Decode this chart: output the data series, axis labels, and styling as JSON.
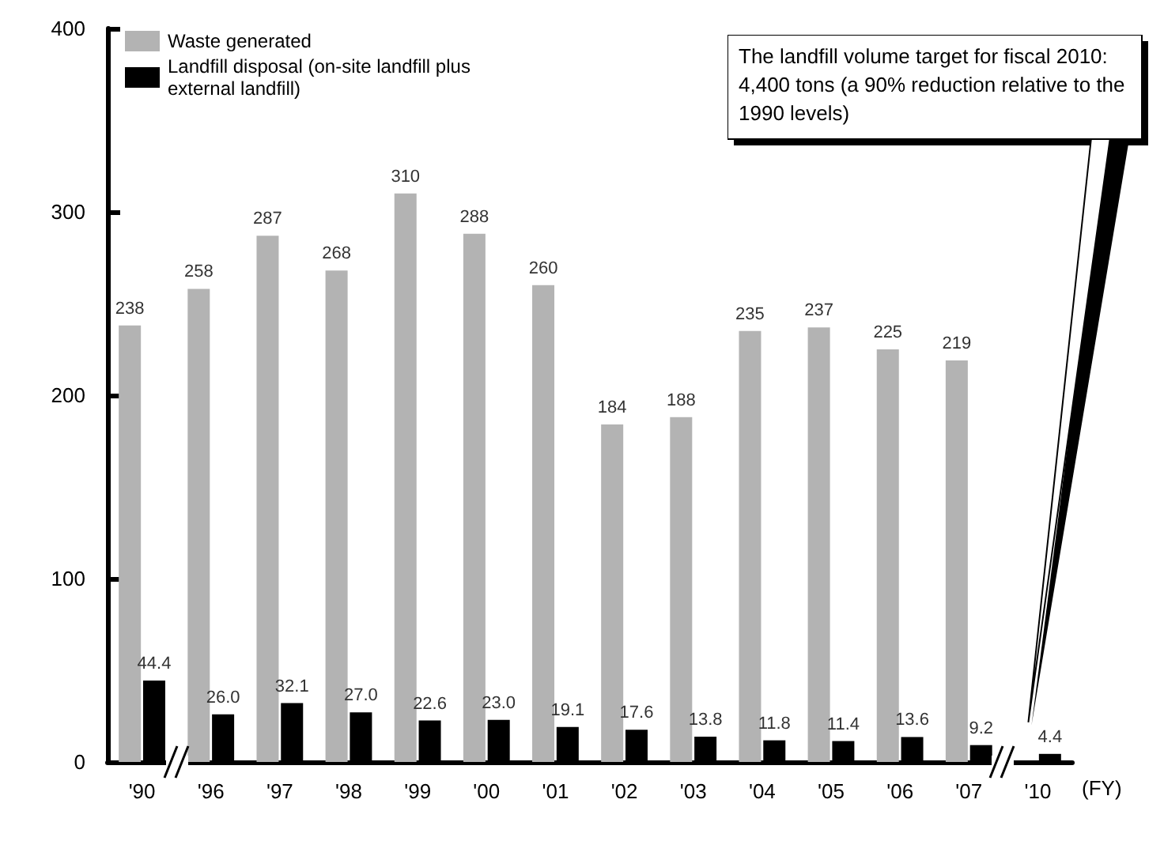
{
  "chart_data": {
    "type": "bar",
    "categories": [
      "'90",
      "'96",
      "'97",
      "'98",
      "'99",
      "'00",
      "'01",
      "'02",
      "'03",
      "'04",
      "'05",
      "'06",
      "'07",
      "'10"
    ],
    "xlabel": "(FY)",
    "series": [
      {
        "name": "Waste generated",
        "color": "#b3b3b3",
        "values": [
          238,
          258,
          287,
          268,
          310,
          288,
          260,
          184,
          188,
          235,
          237,
          225,
          219,
          null
        ],
        "value_labels": [
          "238",
          "258",
          "287",
          "268",
          "310",
          "288",
          "260",
          "184",
          "188",
          "235",
          "237",
          "225",
          "219",
          null
        ]
      },
      {
        "name": "Landfill disposal (on-site landfill plus external landfill)",
        "color": "#000000",
        "values": [
          44.4,
          26.0,
          32.1,
          27.0,
          22.6,
          23.0,
          19.1,
          17.6,
          13.8,
          11.8,
          11.4,
          13.6,
          9.2,
          4.4
        ],
        "value_labels": [
          "44.4",
          "26.0",
          "32.1",
          "27.0",
          "22.6",
          "23.0",
          "19.1",
          "17.6",
          "13.8",
          "11.8",
          "11.4",
          "13.6",
          "9.2",
          "4.4"
        ]
      }
    ],
    "ylim": [
      0,
      400
    ],
    "yticks": [
      0,
      100,
      200,
      300,
      400
    ],
    "grid": false,
    "legend": "top left",
    "annotations": [
      "The landfill volume target for fiscal 2010: 4,400 tons (a 90% reduction relative to the 1990 levels)"
    ]
  }
}
